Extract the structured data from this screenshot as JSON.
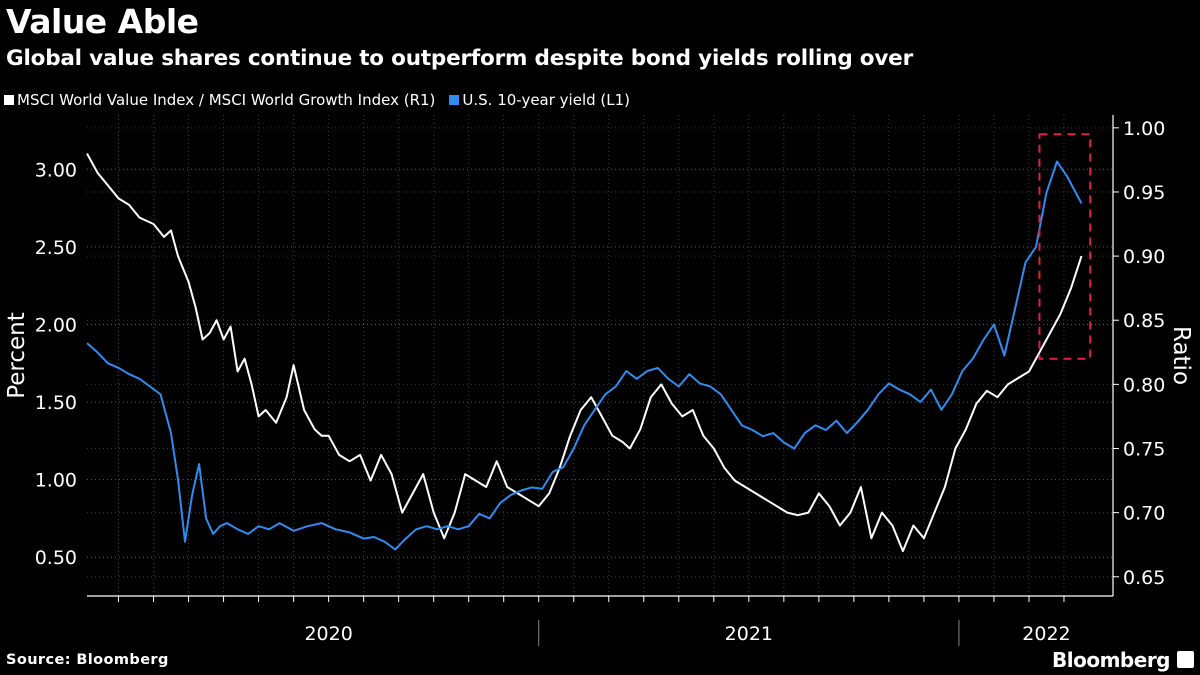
{
  "header": {
    "title": "Value Able",
    "subtitle": "Global value shares continue to outperform despite bond yields rolling over"
  },
  "footer": {
    "source": "Source: Bloomberg",
    "brand": "Bloomberg"
  },
  "colors": {
    "background": "#000000",
    "value_growth_series": "#ffffff",
    "yield_series": "#2f8cf0",
    "highlight_box": "#e0233c",
    "grid": "#5a5a5a"
  },
  "chart_data": {
    "type": "line",
    "title": "Value Able",
    "subtitle": "Global value shares continue to outperform despite bond yields rolling over",
    "x_unit": "months since Jan 1, 2020",
    "xlim": [
      -0.9,
      28.4
    ],
    "x_tick_labels": [
      {
        "label": "2020",
        "x": 6
      },
      {
        "label": "2021",
        "x": 18
      },
      {
        "label": "2022",
        "x": 26.5
      }
    ],
    "year_separators": [
      12,
      24
    ],
    "left_axis": {
      "label": "Percent",
      "ylim": [
        0.25,
        3.35
      ],
      "ticks": [
        0.5,
        1.0,
        1.5,
        2.0,
        2.5,
        3.0
      ],
      "tick_labels": [
        "0.50",
        "1.00",
        "1.50",
        "2.00",
        "2.50",
        "3.00"
      ]
    },
    "right_axis": {
      "label": "Ratio",
      "ylim": [
        0.635,
        1.01
      ],
      "ticks": [
        0.65,
        0.7,
        0.75,
        0.8,
        0.85,
        0.9,
        0.95,
        1.0
      ],
      "tick_labels": [
        "0.65",
        "0.70",
        "0.75",
        "0.80",
        "0.85",
        "0.90",
        "0.95",
        "1.00"
      ]
    },
    "series": [
      {
        "name": "MSCI World Value Index / MSCI World Growth Index (R1)",
        "legend": "MSCI World Value Index / MSCI World Growth Index (R1)",
        "axis": "right",
        "color": "#ffffff",
        "x": [
          -0.9,
          -0.6,
          -0.3,
          0.0,
          0.3,
          0.6,
          1.0,
          1.3,
          1.5,
          1.7,
          2.0,
          2.2,
          2.4,
          2.6,
          2.8,
          3.0,
          3.2,
          3.4,
          3.6,
          3.8,
          4.0,
          4.2,
          4.5,
          4.8,
          5.0,
          5.3,
          5.6,
          5.8,
          6.0,
          6.3,
          6.6,
          6.9,
          7.2,
          7.5,
          7.8,
          8.1,
          8.4,
          8.7,
          9.0,
          9.3,
          9.6,
          9.9,
          10.2,
          10.5,
          10.8,
          11.1,
          11.4,
          11.7,
          12.0,
          12.3,
          12.6,
          12.9,
          13.2,
          13.5,
          13.8,
          14.1,
          14.4,
          14.6,
          14.9,
          15.2,
          15.5,
          15.8,
          16.1,
          16.4,
          16.7,
          17.0,
          17.3,
          17.6,
          17.9,
          18.2,
          18.5,
          18.8,
          19.1,
          19.4,
          19.7,
          20.0,
          20.3,
          20.6,
          20.9,
          21.2,
          21.5,
          21.8,
          22.1,
          22.4,
          22.7,
          23.0,
          23.3,
          23.6,
          23.9,
          24.2,
          24.5,
          24.8,
          25.1,
          25.4,
          25.7,
          26.0,
          26.3,
          26.6,
          26.9,
          27.2,
          27.5
        ],
        "values": [
          0.98,
          0.965,
          0.955,
          0.945,
          0.94,
          0.93,
          0.925,
          0.915,
          0.92,
          0.9,
          0.88,
          0.86,
          0.835,
          0.84,
          0.85,
          0.835,
          0.845,
          0.81,
          0.82,
          0.8,
          0.775,
          0.78,
          0.77,
          0.79,
          0.815,
          0.78,
          0.765,
          0.76,
          0.76,
          0.745,
          0.74,
          0.745,
          0.725,
          0.745,
          0.73,
          0.7,
          0.715,
          0.73,
          0.7,
          0.68,
          0.7,
          0.73,
          0.725,
          0.72,
          0.74,
          0.72,
          0.715,
          0.71,
          0.705,
          0.715,
          0.735,
          0.76,
          0.78,
          0.79,
          0.775,
          0.76,
          0.755,
          0.75,
          0.765,
          0.79,
          0.8,
          0.785,
          0.775,
          0.78,
          0.76,
          0.75,
          0.735,
          0.725,
          0.72,
          0.715,
          0.71,
          0.705,
          0.7,
          0.698,
          0.7,
          0.715,
          0.705,
          0.69,
          0.7,
          0.72,
          0.68,
          0.7,
          0.69,
          0.67,
          0.69,
          0.68,
          0.7,
          0.72,
          0.75,
          0.765,
          0.785,
          0.795,
          0.79,
          0.8,
          0.805,
          0.81,
          0.825,
          0.84,
          0.855,
          0.875,
          0.9
        ]
      },
      {
        "name": "U.S. 10-year yield (L1)",
        "legend": "U.S. 10-year yield (L1)",
        "axis": "left",
        "color": "#2f8cf0",
        "x": [
          -0.9,
          -0.6,
          -0.3,
          0.0,
          0.3,
          0.6,
          0.9,
          1.2,
          1.5,
          1.7,
          1.9,
          2.1,
          2.3,
          2.5,
          2.7,
          2.9,
          3.1,
          3.4,
          3.7,
          4.0,
          4.3,
          4.6,
          5.0,
          5.4,
          5.8,
          6.2,
          6.6,
          7.0,
          7.3,
          7.6,
          7.9,
          8.2,
          8.5,
          8.8,
          9.1,
          9.4,
          9.7,
          10.0,
          10.3,
          10.6,
          10.9,
          11.2,
          11.5,
          11.8,
          12.1,
          12.4,
          12.7,
          13.0,
          13.3,
          13.6,
          13.9,
          14.2,
          14.5,
          14.8,
          15.1,
          15.4,
          15.7,
          16.0,
          16.3,
          16.6,
          16.9,
          17.2,
          17.5,
          17.8,
          18.1,
          18.4,
          18.7,
          19.0,
          19.3,
          19.6,
          19.9,
          20.2,
          20.5,
          20.8,
          21.1,
          21.4,
          21.7,
          22.0,
          22.3,
          22.6,
          22.9,
          23.2,
          23.5,
          23.8,
          24.1,
          24.4,
          24.7,
          25.0,
          25.3,
          25.6,
          25.9,
          26.2,
          26.5,
          26.8,
          27.1,
          27.5
        ],
        "values": [
          1.88,
          1.82,
          1.75,
          1.72,
          1.68,
          1.65,
          1.6,
          1.55,
          1.3,
          1.0,
          0.6,
          0.9,
          1.1,
          0.75,
          0.65,
          0.7,
          0.72,
          0.68,
          0.65,
          0.7,
          0.68,
          0.72,
          0.67,
          0.7,
          0.72,
          0.68,
          0.66,
          0.62,
          0.63,
          0.6,
          0.55,
          0.62,
          0.68,
          0.7,
          0.68,
          0.7,
          0.68,
          0.7,
          0.78,
          0.75,
          0.85,
          0.9,
          0.93,
          0.95,
          0.94,
          1.05,
          1.08,
          1.2,
          1.35,
          1.45,
          1.55,
          1.6,
          1.7,
          1.65,
          1.7,
          1.72,
          1.65,
          1.6,
          1.68,
          1.62,
          1.6,
          1.55,
          1.45,
          1.35,
          1.32,
          1.28,
          1.3,
          1.24,
          1.2,
          1.3,
          1.35,
          1.32,
          1.38,
          1.3,
          1.37,
          1.45,
          1.55,
          1.62,
          1.58,
          1.55,
          1.5,
          1.58,
          1.45,
          1.55,
          1.7,
          1.78,
          1.9,
          2.0,
          1.8,
          2.1,
          2.4,
          2.5,
          2.85,
          3.05,
          2.95,
          2.78
        ]
      }
    ],
    "annotations": [
      {
        "type": "dashed-box",
        "x": [
          26.3,
          27.75
        ],
        "right_axis_range": [
          0.82,
          0.995
        ]
      }
    ]
  }
}
